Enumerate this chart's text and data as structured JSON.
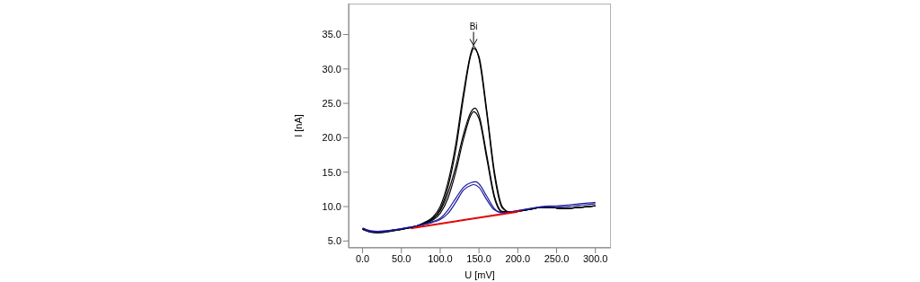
{
  "chart_data": {
    "type": "line",
    "xlabel": "U [mV]",
    "ylabel": "I [nA]",
    "xlim": [
      -18,
      320
    ],
    "ylim": [
      4,
      39.5
    ],
    "xticks": [
      {
        "value": 0,
        "label": "0.0"
      },
      {
        "value": 50,
        "label": "50.0"
      },
      {
        "value": 100,
        "label": "100.0"
      },
      {
        "value": 150,
        "label": "150.0"
      },
      {
        "value": 200,
        "label": "200.0"
      },
      {
        "value": 250,
        "label": "250.0"
      },
      {
        "value": 300,
        "label": "300.0"
      }
    ],
    "yticks": [
      {
        "value": 5,
        "label": "5.0"
      },
      {
        "value": 10,
        "label": "10.0"
      },
      {
        "value": 15,
        "label": "15.0"
      },
      {
        "value": 20,
        "label": "20.0"
      },
      {
        "value": 25,
        "label": "25.0"
      },
      {
        "value": 30,
        "label": "30.0"
      },
      {
        "value": 35,
        "label": "35.0"
      }
    ],
    "grid": false,
    "marker": "none",
    "line_style": "solid",
    "annotations": [
      {
        "text": "Bi",
        "x": 143,
        "y": 33.3
      }
    ],
    "series": [
      {
        "color": "#000000",
        "x": [
          0,
          10,
          20,
          30,
          40,
          50,
          60,
          70,
          80,
          90,
          100,
          110,
          120,
          130,
          140,
          143,
          150,
          160,
          170,
          180,
          190,
          200,
          210,
          220,
          230,
          240,
          250,
          260,
          270,
          280,
          290,
          300
        ],
        "values": [
          6.8,
          6.4,
          6.3,
          6.4,
          6.6,
          6.7,
          6.9,
          7.2,
          7.7,
          8.4,
          10.0,
          13.5,
          19.0,
          26.5,
          32.5,
          33.3,
          31.5,
          23.5,
          14.5,
          9.8,
          9.2,
          9.3,
          9.5,
          9.7,
          9.9,
          9.9,
          9.8,
          9.7,
          9.8,
          9.9,
          10.0,
          10.1
        ]
      },
      {
        "color": "#000000",
        "x": [
          0,
          10,
          20,
          30,
          40,
          50,
          60,
          70,
          80,
          90,
          100,
          110,
          120,
          130,
          140,
          143,
          150,
          160,
          170,
          180,
          190,
          200,
          210,
          220,
          230,
          240,
          250,
          260,
          270,
          280,
          290,
          300
        ],
        "values": [
          6.7,
          6.3,
          6.2,
          6.3,
          6.5,
          6.7,
          6.9,
          7.2,
          7.6,
          8.2,
          9.6,
          12.8,
          18.2,
          25.8,
          32.2,
          33.0,
          31.8,
          24.0,
          15.0,
          10.0,
          9.2,
          9.3,
          9.5,
          9.7,
          9.9,
          9.9,
          9.8,
          9.7,
          9.8,
          9.9,
          10.0,
          10.1
        ]
      },
      {
        "color": "#000000",
        "x": [
          0,
          10,
          20,
          30,
          40,
          50,
          60,
          70,
          80,
          90,
          100,
          110,
          120,
          130,
          140,
          145,
          150,
          160,
          170,
          180,
          190,
          200,
          210,
          220,
          230,
          240,
          250,
          260,
          270,
          280,
          290,
          300
        ],
        "values": [
          6.8,
          6.4,
          6.3,
          6.4,
          6.6,
          6.7,
          6.9,
          7.2,
          7.6,
          8.2,
          9.4,
          12.0,
          15.8,
          20.5,
          23.8,
          24.3,
          23.3,
          17.5,
          11.5,
          9.3,
          9.2,
          9.3,
          9.5,
          9.7,
          9.9,
          9.9,
          9.8,
          9.7,
          9.8,
          9.9,
          10.0,
          10.1
        ]
      },
      {
        "color": "#000000",
        "x": [
          0,
          10,
          20,
          30,
          40,
          50,
          60,
          70,
          80,
          90,
          100,
          110,
          120,
          130,
          140,
          143,
          150,
          160,
          170,
          180,
          190,
          200,
          210,
          220,
          230,
          240,
          250,
          260,
          270,
          280,
          290,
          300
        ],
        "values": [
          6.7,
          6.3,
          6.2,
          6.3,
          6.5,
          6.7,
          6.9,
          7.1,
          7.5,
          8.0,
          9.0,
          11.2,
          15.0,
          19.8,
          23.4,
          23.8,
          22.8,
          17.0,
          11.2,
          9.2,
          9.2,
          9.3,
          9.5,
          9.7,
          9.9,
          9.9,
          9.8,
          9.7,
          9.8,
          9.9,
          10.0,
          10.1
        ]
      },
      {
        "color": "#1a1aa0",
        "x": [
          0,
          10,
          20,
          30,
          40,
          50,
          60,
          70,
          80,
          90,
          100,
          110,
          120,
          130,
          140,
          146,
          150,
          160,
          170,
          180,
          190,
          200,
          210,
          220,
          230,
          240,
          250,
          260,
          270,
          280,
          290,
          300
        ],
        "values": [
          6.9,
          6.5,
          6.4,
          6.5,
          6.6,
          6.8,
          7.0,
          7.2,
          7.5,
          7.8,
          8.3,
          9.5,
          11.2,
          12.8,
          13.5,
          13.6,
          13.3,
          11.5,
          9.7,
          9.1,
          9.2,
          9.4,
          9.6,
          9.8,
          10.0,
          10.1,
          10.1,
          10.2,
          10.3,
          10.4,
          10.5,
          10.6
        ]
      },
      {
        "color": "#1a1aa0",
        "x": [
          3,
          10,
          20,
          30,
          40,
          50,
          60,
          70,
          80,
          90,
          100,
          110,
          120,
          130,
          140,
          143,
          150,
          160,
          170,
          180,
          190,
          200,
          210,
          220,
          230,
          240,
          250,
          260,
          270,
          280,
          290,
          300
        ],
        "values": [
          6.6,
          6.4,
          6.3,
          6.4,
          6.6,
          6.8,
          7.0,
          7.2,
          7.4,
          7.7,
          8.1,
          9.0,
          10.6,
          12.4,
          13.1,
          13.2,
          12.8,
          11.0,
          9.5,
          9.1,
          9.2,
          9.4,
          9.6,
          9.8,
          9.9,
          10.0,
          10.0,
          10.0,
          10.1,
          10.2,
          10.3,
          10.4
        ]
      },
      {
        "color": "#e00000",
        "x": [
          62,
          200
        ],
        "values": [
          6.8,
          9.2
        ]
      },
      {
        "color": "#e00000",
        "x": [
          67,
          205
        ],
        "values": [
          7.0,
          9.4
        ]
      }
    ]
  }
}
